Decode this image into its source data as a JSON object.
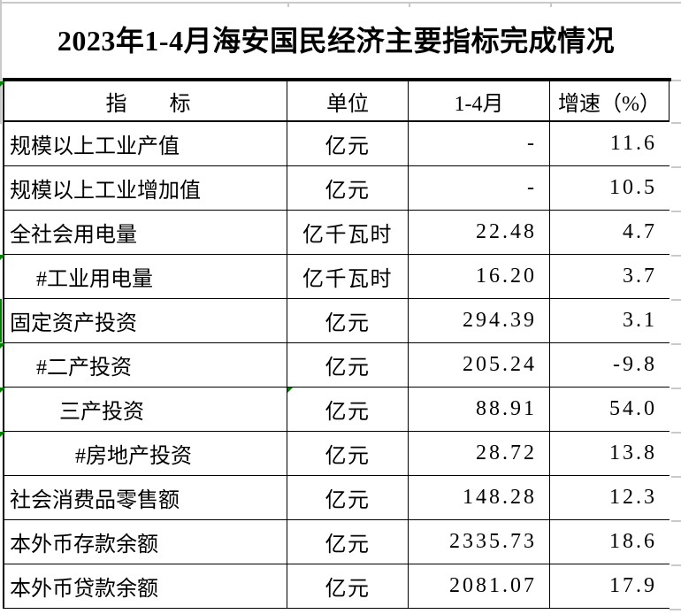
{
  "title": "2023年1-4月海安国民经济主要指标完成情况",
  "table": {
    "headers": {
      "indicator": "指　　标",
      "unit": "单位",
      "period": "1-4月",
      "growth": "增速（%）"
    },
    "header_error_marker": true,
    "rows": [
      {
        "indicator": "规模以上工业产值",
        "unit": "亿元",
        "value": "-",
        "growth": "11.6",
        "indent": 0,
        "marker": false,
        "left_strip": false,
        "unit_marker": false
      },
      {
        "indicator": "规模以上工业增加值",
        "unit": "亿元",
        "value": "-",
        "growth": "10.5",
        "indent": 0,
        "marker": false,
        "left_strip": false,
        "unit_marker": false
      },
      {
        "indicator": "全社会用电量",
        "unit": "亿千瓦时",
        "value": "22.48",
        "growth": "4.7",
        "indent": 0,
        "marker": false,
        "left_strip": false,
        "unit_marker": false
      },
      {
        "indicator": "#工业用电量",
        "unit": "亿千瓦时",
        "value": "16.20",
        "growth": "3.7",
        "indent": 1,
        "marker": true,
        "left_strip": false,
        "unit_marker": false
      },
      {
        "indicator": "固定资产投资",
        "unit": "亿元",
        "value": "294.39",
        "growth": "3.1",
        "indent": 0,
        "marker": false,
        "left_strip": true,
        "unit_marker": false
      },
      {
        "indicator": "#二产投资",
        "unit": "亿元",
        "value": "205.24",
        "growth": "-9.8",
        "indent": 1,
        "marker": true,
        "left_strip": false,
        "unit_marker": false
      },
      {
        "indicator": "三产投资",
        "unit": "亿元",
        "value": "88.91",
        "growth": "54.0",
        "indent": 2,
        "marker": true,
        "left_strip": false,
        "unit_marker": true
      },
      {
        "indicator": "#房地产投资",
        "unit": "亿元",
        "value": "28.72",
        "growth": "13.8",
        "indent": 3,
        "marker": true,
        "left_strip": false,
        "unit_marker": false
      },
      {
        "indicator": "社会消费品零售额",
        "unit": "亿元",
        "value": "148.28",
        "growth": "12.3",
        "indent": 0,
        "marker": false,
        "left_strip": false,
        "unit_marker": false
      },
      {
        "indicator": "本外币存款余额",
        "unit": "亿元",
        "value": "2335.73",
        "growth": "18.6",
        "indent": 0,
        "marker": false,
        "left_strip": false,
        "unit_marker": false
      },
      {
        "indicator": "本外币贷款余额",
        "unit": "亿元",
        "value": "2081.07",
        "growth": "17.9",
        "indent": 0,
        "marker": false,
        "left_strip": false,
        "unit_marker": false
      }
    ]
  },
  "colors": {
    "border_black": "#000000",
    "error_marker_green": "#008000",
    "gridline_gray": "#c9c9c9"
  },
  "chart_data": {
    "type": "table",
    "title": "2023年1-4月海安国民经济主要指标完成情况",
    "columns": [
      "指　　标",
      "单位",
      "1-4月",
      "增速（%）"
    ],
    "rows": [
      [
        "规模以上工业产值",
        "亿元",
        "-",
        11.6
      ],
      [
        "规模以上工业增加值",
        "亿元",
        "-",
        10.5
      ],
      [
        "全社会用电量",
        "亿千瓦时",
        22.48,
        4.7
      ],
      [
        "#工业用电量",
        "亿千瓦时",
        16.2,
        3.7
      ],
      [
        "固定资产投资",
        "亿元",
        294.39,
        3.1
      ],
      [
        "#二产投资",
        "亿元",
        205.24,
        -9.8
      ],
      [
        "三产投资",
        "亿元",
        88.91,
        54.0
      ],
      [
        "#房地产投资",
        "亿元",
        28.72,
        13.8
      ],
      [
        "社会消费品零售额",
        "亿元",
        148.28,
        12.3
      ],
      [
        "本外币存款余额",
        "亿元",
        2335.73,
        18.6
      ],
      [
        "本外币贷款余额",
        "亿元",
        2081.07,
        17.9
      ]
    ]
  }
}
